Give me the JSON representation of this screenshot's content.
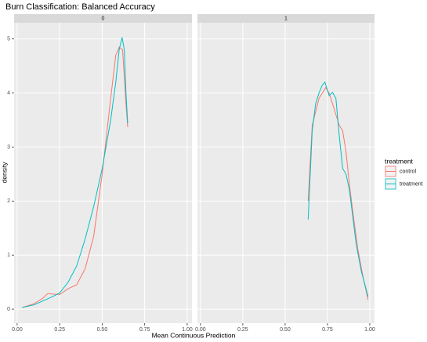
{
  "chart_data": {
    "type": "line",
    "title": "Burn Classification: Balanced Accuracy",
    "x_label": "Mean Continuous Prediction",
    "y_label": "density",
    "legend_title": "treatment",
    "legend": "right",
    "grid": true,
    "series": [
      {
        "name": "control",
        "color": "#F8766D"
      },
      {
        "name": "treatment",
        "color": "#00BFC4"
      }
    ],
    "xlim": [
      -0.018,
      1.028
    ],
    "xticks": [
      {
        "value": 0,
        "label": "0.00"
      },
      {
        "value": 0.25,
        "label": "0.25"
      },
      {
        "value": 0.5,
        "label": "0.50"
      },
      {
        "value": 0.75,
        "label": "0.75"
      },
      {
        "value": 1,
        "label": "1.00"
      }
    ],
    "ylim": [
      -0.26,
      5.3
    ],
    "yticks": [
      0,
      1,
      2,
      3,
      4,
      5
    ],
    "facets": [
      {
        "label": "0",
        "series": [
          {
            "x": [
              0.03,
              0.1,
              0.15,
              0.18,
              0.2,
              0.25,
              0.3,
              0.35,
              0.4,
              0.45,
              0.5,
              0.55,
              0.58,
              0.6,
              0.62,
              0.64,
              0.65
            ],
            "values": [
              0.03,
              0.1,
              0.2,
              0.29,
              0.28,
              0.27,
              0.38,
              0.45,
              0.75,
              1.35,
              2.5,
              3.9,
              4.7,
              4.85,
              4.8,
              3.8,
              3.37
            ]
          },
          {
            "x": [
              0.03,
              0.1,
              0.2,
              0.25,
              0.3,
              0.35,
              0.4,
              0.45,
              0.5,
              0.55,
              0.58,
              0.6,
              0.617,
              0.63,
              0.64,
              0.65
            ],
            "values": [
              0.03,
              0.08,
              0.22,
              0.3,
              0.5,
              0.8,
              1.3,
              1.9,
              2.6,
              3.5,
              4.2,
              4.8,
              5.03,
              4.8,
              4.0,
              3.44
            ]
          }
        ]
      },
      {
        "label": "1",
        "series": [
          {
            "x": [
              0.636,
              0.66,
              0.7,
              0.74,
              0.76,
              0.8,
              0.82,
              0.84,
              0.86,
              0.88,
              0.9,
              0.93,
              0.96,
              0.99
            ],
            "values": [
              2.0,
              3.4,
              3.9,
              4.1,
              4.0,
              3.6,
              3.4,
              3.3,
              2.9,
              2.3,
              1.8,
              1.1,
              0.6,
              0.17
            ]
          },
          {
            "x": [
              0.636,
              0.66,
              0.68,
              0.7,
              0.72,
              0.735,
              0.76,
              0.78,
              0.8,
              0.82,
              0.84,
              0.86,
              0.88,
              0.9,
              0.92,
              0.95,
              0.98,
              0.99
            ],
            "values": [
              1.66,
              3.3,
              3.8,
              4.0,
              4.15,
              4.2,
              3.95,
              4.01,
              3.9,
              3.2,
              2.6,
              2.5,
              2.2,
              1.7,
              1.2,
              0.7,
              0.35,
              0.23
            ]
          }
        ]
      }
    ]
  }
}
